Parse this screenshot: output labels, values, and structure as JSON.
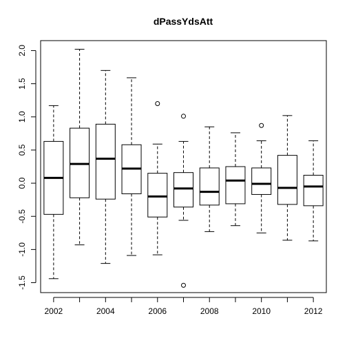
{
  "chart_data": {
    "type": "boxplot",
    "title": "dPassYdsAtt",
    "xlabel": "",
    "ylabel": "",
    "ylim": [
      -1.65,
      2.15
    ],
    "y_ticks": [
      -1.5,
      -1.0,
      -0.5,
      0.0,
      0.5,
      1.0,
      1.5,
      2.0
    ],
    "y_tick_labels": [
      "-1.5",
      "-1.0",
      "-0.5",
      "0.0",
      "0.5",
      "1.0",
      "1.5",
      "2.0"
    ],
    "categories": [
      "2002",
      "2003",
      "2004",
      "2005",
      "2006",
      "2007",
      "2008",
      "2009",
      "2010",
      "2011",
      "2012"
    ],
    "x_tick_labels": [
      "2002",
      "",
      "2004",
      "",
      "2006",
      "",
      "2008",
      "",
      "2010",
      "",
      "2012"
    ],
    "grid": false,
    "boxes": [
      {
        "whisker_low": -1.44,
        "q1": -0.47,
        "median": 0.08,
        "q3": 0.63,
        "whisker_high": 1.17,
        "outliers": []
      },
      {
        "whisker_low": -0.93,
        "q1": -0.22,
        "median": 0.29,
        "q3": 0.83,
        "whisker_high": 2.02,
        "outliers": []
      },
      {
        "whisker_low": -1.21,
        "q1": -0.24,
        "median": 0.37,
        "q3": 0.89,
        "whisker_high": 1.7,
        "outliers": []
      },
      {
        "whisker_low": -1.09,
        "q1": -0.16,
        "median": 0.22,
        "q3": 0.58,
        "whisker_high": 1.59,
        "outliers": []
      },
      {
        "whisker_low": -1.08,
        "q1": -0.51,
        "median": -0.2,
        "q3": 0.15,
        "whisker_high": 0.59,
        "outliers": [
          1.2
        ]
      },
      {
        "whisker_low": -0.56,
        "q1": -0.36,
        "median": -0.08,
        "q3": 0.16,
        "whisker_high": 0.63,
        "outliers": [
          1.01,
          -1.54
        ]
      },
      {
        "whisker_low": -0.73,
        "q1": -0.33,
        "median": -0.13,
        "q3": 0.23,
        "whisker_high": 0.85,
        "outliers": []
      },
      {
        "whisker_low": -0.64,
        "q1": -0.31,
        "median": 0.04,
        "q3": 0.25,
        "whisker_high": 0.76,
        "outliers": []
      },
      {
        "whisker_low": -0.75,
        "q1": -0.17,
        "median": -0.01,
        "q3": 0.23,
        "whisker_high": 0.64,
        "outliers": [
          0.87
        ]
      },
      {
        "whisker_low": -0.86,
        "q1": -0.32,
        "median": -0.07,
        "q3": 0.42,
        "whisker_high": 1.02,
        "outliers": []
      },
      {
        "whisker_low": -0.87,
        "q1": -0.34,
        "median": -0.05,
        "q3": 0.12,
        "whisker_high": 0.64,
        "outliers": []
      }
    ]
  }
}
